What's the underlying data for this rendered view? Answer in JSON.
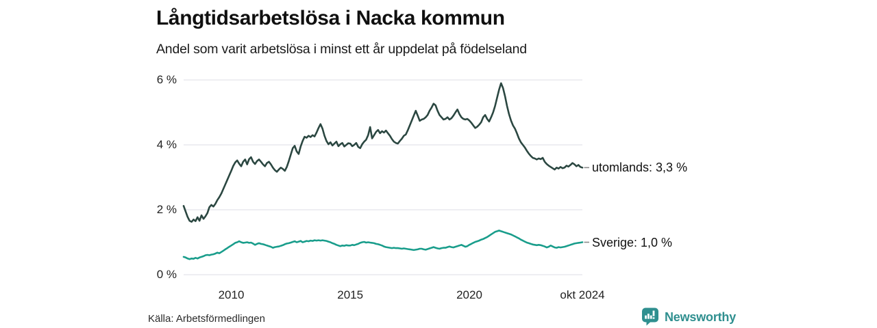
{
  "header": {
    "title": "Långtidsarbetslösa i Nacka kommun",
    "subtitle": "Andel som varit arbetslösa i minst ett år uppdelat på födelseland"
  },
  "footer": {
    "source": "Källa: Arbetsförmedlingen",
    "brand": "Newsworthy"
  },
  "colors": {
    "grid": "#e4e4e9",
    "axis_text": "#222222",
    "connector": "#8a8a8a",
    "utomlands_line": "#2b4741",
    "sverige_line": "#199d8b",
    "brand": "#2f8f8f"
  },
  "chart_data": {
    "type": "line",
    "title": "Långtidsarbetslösa i Nacka kommun",
    "subtitle": "Andel som varit arbetslösa i minst ett år uppdelat på födelseland",
    "xlabel": "",
    "ylabel": "",
    "grid": true,
    "legend_position": "right-end-labels",
    "x_start": 2008.0,
    "x_step_years": 0.0833333,
    "x_unit": "monthly, Jan 2008 – Oct 2024",
    "xlim": [
      2008.0,
      2024.75
    ],
    "ylim": [
      0,
      6
    ],
    "yticks": [
      {
        "v": 0,
        "label": "0 %"
      },
      {
        "v": 2,
        "label": "2 %"
      },
      {
        "v": 4,
        "label": "4 %"
      },
      {
        "v": 6,
        "label": "6 %"
      }
    ],
    "xticks": [
      {
        "v": 2010,
        "label": "2010"
      },
      {
        "v": 2015,
        "label": "2015"
      },
      {
        "v": 2020,
        "label": "2020"
      },
      {
        "v": 2024.75,
        "label": "okt 2024"
      }
    ],
    "series": [
      {
        "id": "utomlands",
        "name": "utomlands",
        "label": "utomlands: 3,3 %",
        "end_value": "3,3 %",
        "color": "#2b4741",
        "values": [
          2.12,
          1.95,
          1.78,
          1.66,
          1.63,
          1.7,
          1.65,
          1.77,
          1.66,
          1.83,
          1.72,
          1.8,
          1.9,
          2.08,
          2.15,
          2.1,
          2.18,
          2.3,
          2.39,
          2.5,
          2.64,
          2.78,
          2.92,
          3.06,
          3.2,
          3.35,
          3.46,
          3.52,
          3.42,
          3.34,
          3.48,
          3.55,
          3.4,
          3.56,
          3.62,
          3.48,
          3.41,
          3.5,
          3.55,
          3.48,
          3.4,
          3.34,
          3.44,
          3.48,
          3.4,
          3.3,
          3.22,
          3.17,
          3.24,
          3.3,
          3.26,
          3.2,
          3.32,
          3.5,
          3.7,
          3.9,
          3.97,
          3.8,
          3.72,
          3.95,
          4.12,
          4.25,
          4.22,
          4.28,
          4.24,
          4.3,
          4.26,
          4.38,
          4.52,
          4.64,
          4.5,
          4.28,
          4.12,
          4.02,
          4.08,
          3.98,
          4.04,
          4.1,
          3.96,
          4.02,
          4.06,
          3.95,
          4.0,
          4.05,
          4.04,
          3.96,
          4.0,
          4.06,
          3.94,
          3.9,
          4.02,
          4.1,
          4.16,
          4.3,
          4.55,
          4.2,
          4.3,
          4.4,
          4.46,
          4.36,
          4.42,
          4.38,
          4.44,
          4.36,
          4.28,
          4.18,
          4.1,
          4.06,
          4.04,
          4.12,
          4.19,
          4.28,
          4.32,
          4.45,
          4.6,
          4.75,
          4.9,
          5.05,
          4.9,
          4.74,
          4.78,
          4.8,
          4.85,
          4.92,
          5.05,
          5.15,
          5.27,
          5.22,
          5.05,
          4.92,
          4.85,
          4.78,
          4.8,
          4.85,
          4.78,
          4.82,
          4.9,
          5.0,
          5.09,
          4.95,
          4.85,
          4.8,
          4.78,
          4.8,
          4.75,
          4.68,
          4.6,
          4.52,
          4.56,
          4.62,
          4.7,
          4.85,
          4.92,
          4.8,
          4.72,
          4.85,
          5.0,
          5.2,
          5.45,
          5.7,
          5.9,
          5.75,
          5.5,
          5.2,
          4.95,
          4.75,
          4.6,
          4.5,
          4.36,
          4.2,
          4.08,
          4.0,
          3.92,
          3.82,
          3.73,
          3.66,
          3.6,
          3.58,
          3.55,
          3.58,
          3.56,
          3.6,
          3.48,
          3.41,
          3.36,
          3.32,
          3.28,
          3.24,
          3.3,
          3.27,
          3.32,
          3.28,
          3.3,
          3.36,
          3.33,
          3.38,
          3.44,
          3.4,
          3.34,
          3.38,
          3.32,
          3.3
        ]
      },
      {
        "id": "sverige",
        "name": "Sverige",
        "label": "Sverige: 1,0 %",
        "end_value": "1,0 %",
        "color": "#199d8b",
        "values": [
          0.55,
          0.53,
          0.5,
          0.48,
          0.5,
          0.49,
          0.52,
          0.5,
          0.53,
          0.55,
          0.57,
          0.6,
          0.61,
          0.6,
          0.62,
          0.63,
          0.65,
          0.68,
          0.66,
          0.7,
          0.74,
          0.78,
          0.82,
          0.86,
          0.9,
          0.94,
          0.98,
          1.0,
          1.03,
          1.0,
          0.98,
          0.99,
          1.0,
          0.98,
          0.99,
          0.96,
          0.92,
          0.95,
          0.97,
          0.95,
          0.94,
          0.92,
          0.9,
          0.88,
          0.86,
          0.83,
          0.85,
          0.86,
          0.87,
          0.89,
          0.91,
          0.94,
          0.96,
          0.97,
          0.99,
          1.01,
          1.03,
          1.0,
          1.02,
          1.04,
          1.0,
          1.02,
          1.04,
          1.03,
          1.05,
          1.04,
          1.06,
          1.05,
          1.06,
          1.05,
          1.06,
          1.05,
          1.04,
          1.02,
          1.0,
          0.97,
          0.95,
          0.92,
          0.9,
          0.88,
          0.9,
          0.89,
          0.91,
          0.9,
          0.9,
          0.92,
          0.91,
          0.93,
          0.95,
          0.98,
          1.0,
          1.01,
          0.99,
          1.0,
          0.99,
          0.98,
          0.97,
          0.95,
          0.94,
          0.92,
          0.9,
          0.87,
          0.85,
          0.84,
          0.83,
          0.82,
          0.83,
          0.82,
          0.82,
          0.81,
          0.8,
          0.81,
          0.8,
          0.79,
          0.78,
          0.77,
          0.76,
          0.77,
          0.78,
          0.8,
          0.8,
          0.78,
          0.77,
          0.79,
          0.81,
          0.83,
          0.85,
          0.83,
          0.81,
          0.8,
          0.82,
          0.83,
          0.83,
          0.85,
          0.87,
          0.85,
          0.84,
          0.86,
          0.88,
          0.9,
          0.92,
          0.89,
          0.86,
          0.88,
          0.92,
          0.95,
          0.98,
          1.01,
          1.03,
          1.05,
          1.08,
          1.1,
          1.13,
          1.16,
          1.2,
          1.24,
          1.28,
          1.32,
          1.34,
          1.36,
          1.34,
          1.32,
          1.3,
          1.28,
          1.26,
          1.24,
          1.21,
          1.18,
          1.15,
          1.12,
          1.08,
          1.05,
          1.02,
          0.99,
          0.97,
          0.95,
          0.93,
          0.92,
          0.91,
          0.92,
          0.91,
          0.89,
          0.87,
          0.84,
          0.86,
          0.9,
          0.87,
          0.84,
          0.83,
          0.85,
          0.84,
          0.85,
          0.86,
          0.88,
          0.9,
          0.92,
          0.94,
          0.96,
          0.97,
          0.98,
          0.99,
          1.0
        ]
      }
    ]
  }
}
